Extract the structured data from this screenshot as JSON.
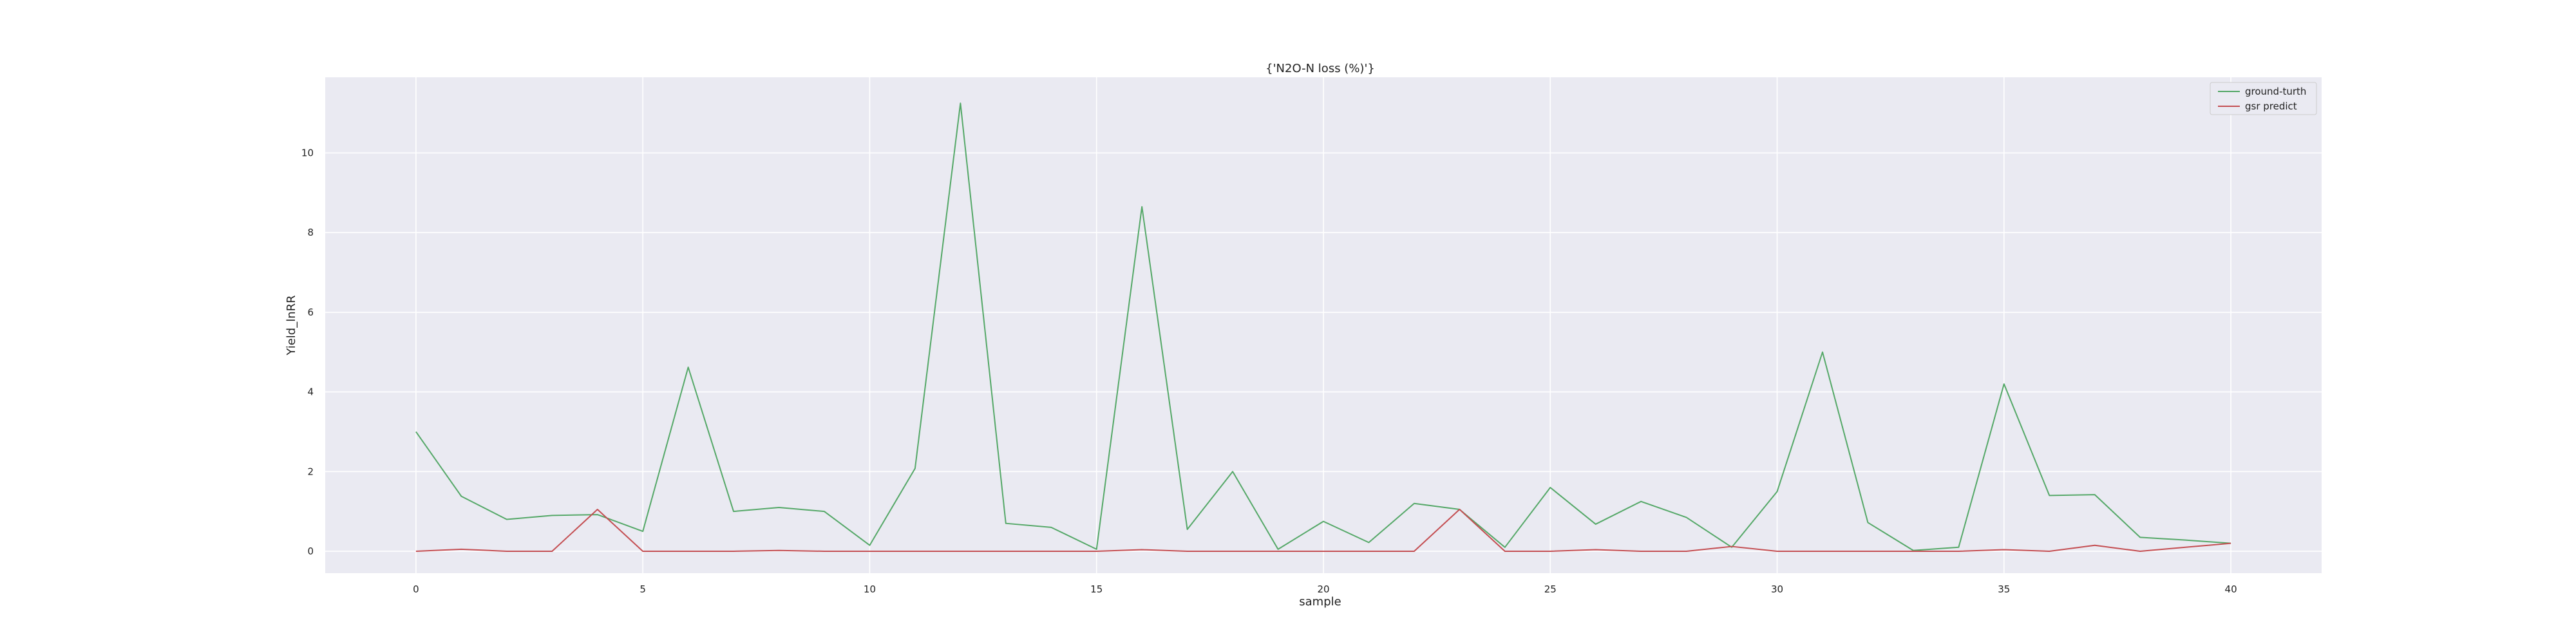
{
  "chart_data": {
    "type": "line",
    "title": "{'N2O-N loss (%)'}",
    "xlabel": "sample",
    "ylabel": "Yield_lnRR",
    "xlim": [
      -2,
      42
    ],
    "ylim": [
      -0.55,
      11.9
    ],
    "x_ticks": [
      0,
      5,
      10,
      15,
      20,
      25,
      30,
      35,
      40
    ],
    "y_ticks": [
      0,
      2,
      4,
      6,
      8,
      10
    ],
    "grid": true,
    "legend_position": "top-right",
    "x": [
      0,
      1,
      2,
      3,
      4,
      5,
      6,
      7,
      8,
      9,
      10,
      11,
      12,
      13,
      14,
      15,
      16,
      17,
      18,
      19,
      20,
      21,
      22,
      23,
      24,
      25,
      26,
      27,
      28,
      29,
      30,
      31,
      32,
      33,
      34,
      35,
      36,
      37,
      38,
      39,
      40
    ],
    "series": [
      {
        "name": "ground-turth",
        "color": "#55a868",
        "values": [
          3.0,
          1.38,
          0.8,
          0.9,
          0.92,
          0.5,
          4.62,
          1.0,
          1.1,
          1.0,
          0.15,
          2.08,
          11.25,
          0.7,
          0.6,
          0.05,
          8.65,
          0.55,
          2.0,
          0.05,
          0.75,
          0.22,
          1.2,
          1.05,
          0.1,
          1.6,
          0.68,
          1.25,
          0.85,
          0.1,
          1.5,
          5.0,
          0.72,
          0.02,
          0.1,
          4.2,
          1.4,
          1.42,
          0.35,
          0.28,
          0.2
        ]
      },
      {
        "name": "gsr predict",
        "color": "#c44e52",
        "values": [
          0.0,
          0.05,
          0.0,
          0.0,
          1.05,
          0.0,
          0.0,
          0.0,
          0.02,
          0.0,
          0.0,
          0.0,
          0.0,
          0.0,
          0.0,
          0.0,
          0.04,
          0.0,
          0.0,
          0.0,
          0.0,
          0.0,
          0.0,
          1.05,
          0.0,
          0.0,
          0.04,
          0.0,
          0.0,
          0.12,
          0.0,
          0.0,
          0.0,
          0.0,
          0.0,
          0.04,
          0.0,
          0.15,
          0.0,
          0.1,
          0.2
        ]
      }
    ]
  }
}
